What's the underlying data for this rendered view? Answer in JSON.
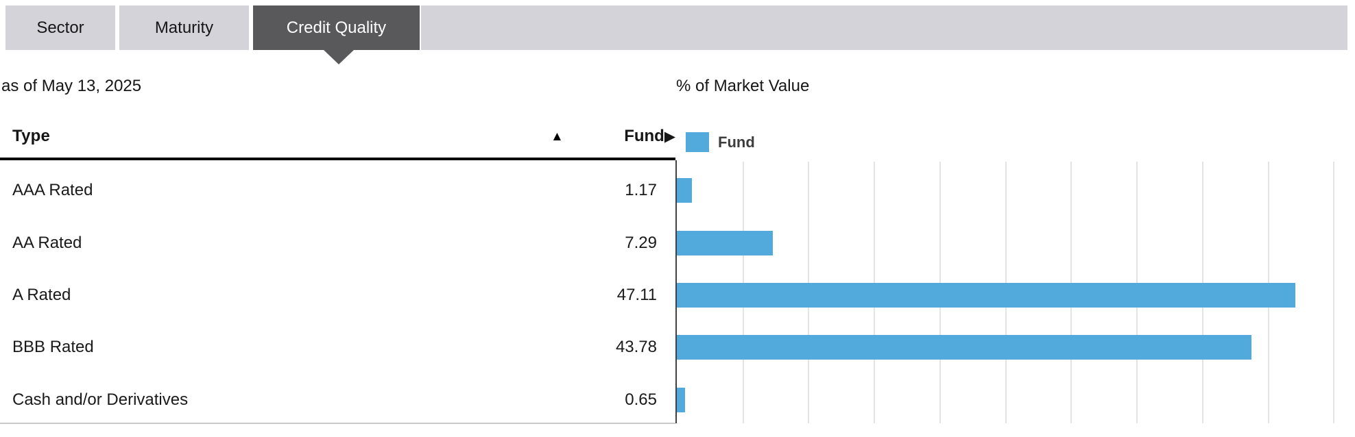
{
  "tabs": [
    {
      "label": "Sector",
      "active": false
    },
    {
      "label": "Maturity",
      "active": false
    },
    {
      "label": "Credit Quality",
      "active": true
    }
  ],
  "as_of_label": "as of May 13, 2025",
  "market_value_label": "% of Market Value",
  "table": {
    "type_header": "Type",
    "sort_indicator": "▲",
    "fund_header": "Fund",
    "fund_header_arrow": "▶",
    "rows": [
      {
        "label": "AAA Rated",
        "value": "1.17"
      },
      {
        "label": "AA Rated",
        "value": "7.29"
      },
      {
        "label": "A Rated",
        "value": "47.11"
      },
      {
        "label": "BBB Rated",
        "value": "43.78"
      },
      {
        "label": "Cash and/or Derivatives",
        "value": "0.65"
      }
    ]
  },
  "legend": {
    "label": "Fund"
  },
  "colors": {
    "bar_blue": "#52a9dc",
    "tab_inactive_bg": "#d5d3da",
    "tab_active_bg": "#59585b",
    "gridline": "#e2e4e6"
  },
  "chart_data": {
    "type": "bar",
    "orientation": "horizontal",
    "title": "% of Market Value",
    "as_of": "May 13, 2025",
    "categories": [
      "AAA Rated",
      "AA Rated",
      "A Rated",
      "BBB Rated",
      "Cash and/or Derivatives"
    ],
    "series": [
      {
        "name": "Fund",
        "values": [
          1.17,
          7.29,
          47.11,
          43.78,
          0.65
        ]
      }
    ],
    "xlabel": "",
    "ylabel": "Type",
    "xlim": [
      0,
      51
    ],
    "gridline_interval": 5,
    "grid": true,
    "legend_position": "top-left",
    "bar_color": "#52a9dc"
  }
}
